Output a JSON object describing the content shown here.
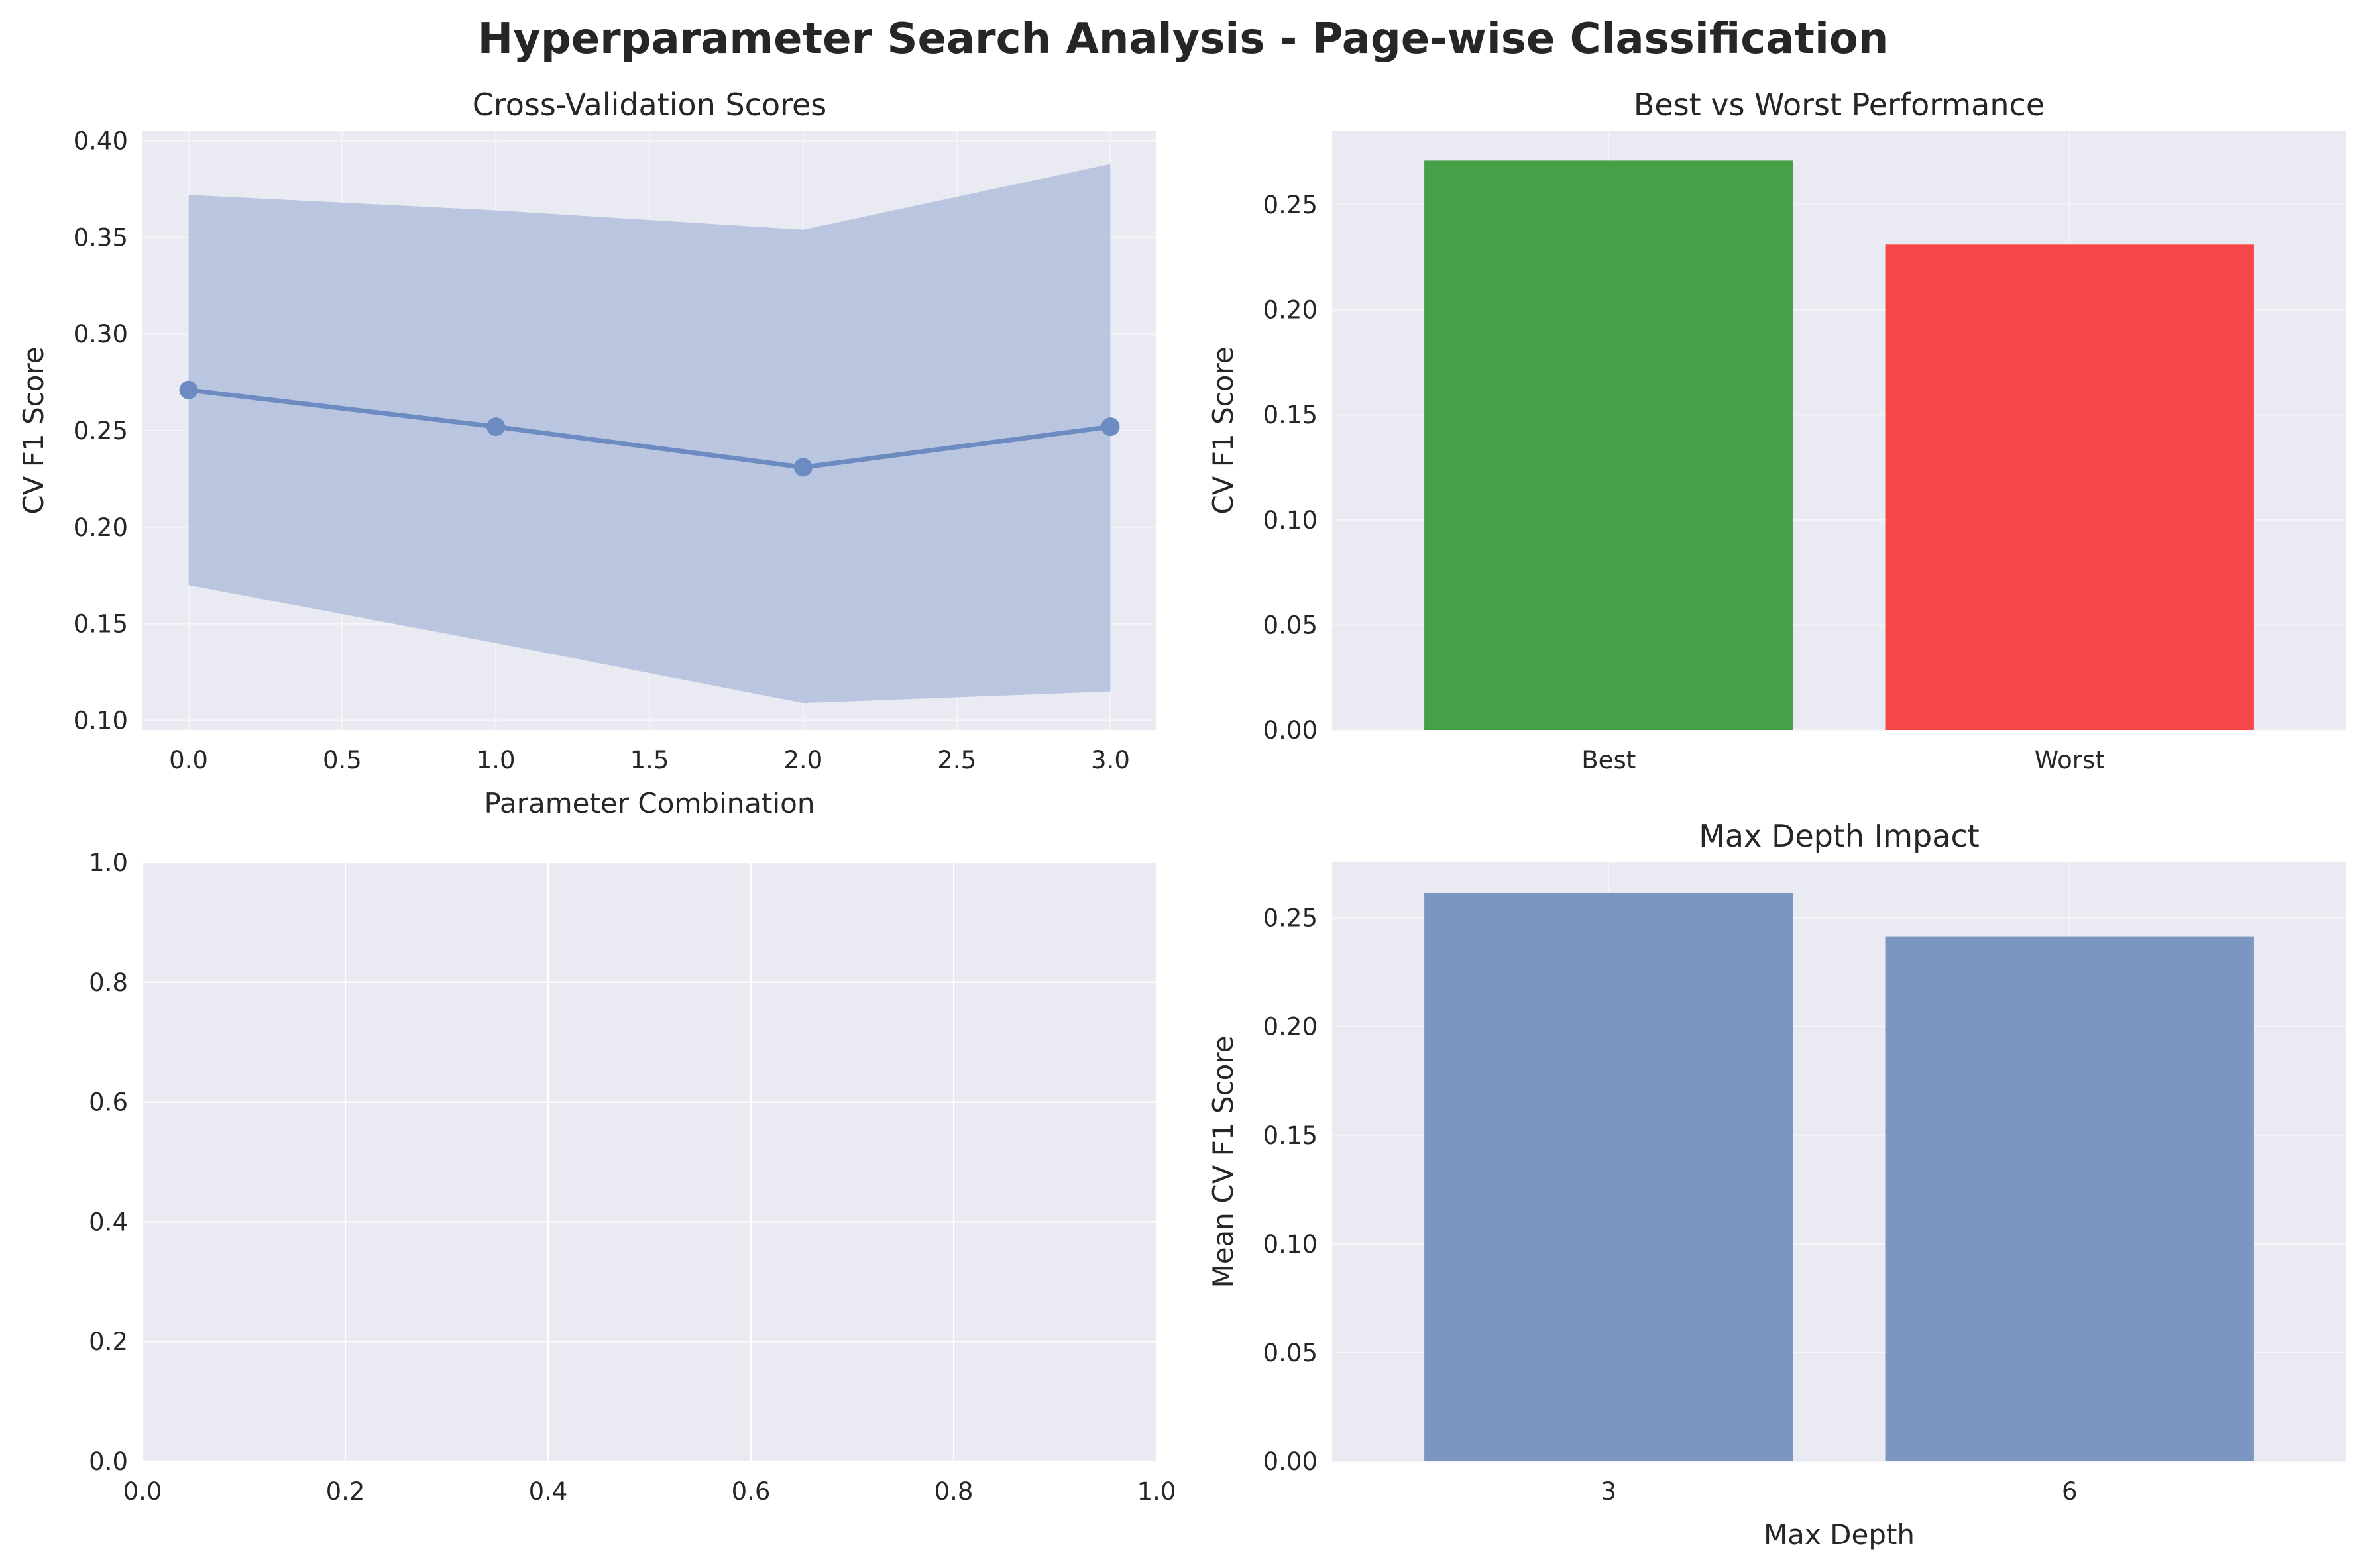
{
  "figure": {
    "suptitle": "Hyperparameter Search Analysis - Page-wise Classification"
  },
  "colors": {
    "axes_bg": "#eaeaf2",
    "series_blue": "#6b8bc1",
    "band_blue": "#b7c4de",
    "bar_blue": "#7b96c1",
    "best_green": "#45a047",
    "worst_red": "#f7464a",
    "text": "#262626"
  },
  "chart_data": [
    {
      "id": "cv",
      "type": "line",
      "title": "Cross-Validation Scores",
      "xlabel": "Parameter Combination",
      "ylabel": "CV F1 Score",
      "x": [
        0,
        1,
        2,
        3
      ],
      "y": [
        0.271,
        0.252,
        0.231,
        0.252
      ],
      "band_upper": [
        0.372,
        0.364,
        0.354,
        0.388
      ],
      "band_lower": [
        0.17,
        0.14,
        0.109,
        0.115
      ],
      "xlim": [
        -0.15,
        3.15
      ],
      "ylim": [
        0.095,
        0.405
      ],
      "xticks": [
        0.0,
        0.5,
        1.0,
        1.5,
        2.0,
        2.5,
        3.0
      ],
      "xtick_labels": [
        "0.0",
        "0.5",
        "1.0",
        "1.5",
        "2.0",
        "2.5",
        "3.0"
      ],
      "yticks": [
        0.1,
        0.15,
        0.2,
        0.25,
        0.3,
        0.35,
        0.4
      ],
      "ytick_labels": [
        "0.10",
        "0.15",
        "0.20",
        "0.25",
        "0.30",
        "0.35",
        "0.40"
      ],
      "grid": true
    },
    {
      "id": "bw",
      "type": "bar",
      "title": "Best vs Worst Performance",
      "xlabel": "",
      "ylabel": "CV F1 Score",
      "categories": [
        "Best",
        "Worst"
      ],
      "values": [
        0.271,
        0.231
      ],
      "bar_colors": [
        "#45a047",
        "#f7464a"
      ],
      "ylim": [
        0,
        0.285
      ],
      "yticks": [
        0.0,
        0.05,
        0.1,
        0.15,
        0.2,
        0.25
      ],
      "ytick_labels": [
        "0.00",
        "0.05",
        "0.10",
        "0.15",
        "0.20",
        "0.25"
      ],
      "grid": true
    },
    {
      "id": "empty",
      "type": "scatter",
      "title": "",
      "xlabel": "",
      "ylabel": "",
      "xlim": [
        0,
        1
      ],
      "ylim": [
        0,
        1
      ],
      "xticks": [
        0.0,
        0.2,
        0.4,
        0.6,
        0.8,
        1.0
      ],
      "xtick_labels": [
        "0.0",
        "0.2",
        "0.4",
        "0.6",
        "0.8",
        "1.0"
      ],
      "yticks": [
        0.0,
        0.2,
        0.4,
        0.6,
        0.8,
        1.0
      ],
      "ytick_labels": [
        "0.0",
        "0.2",
        "0.4",
        "0.6",
        "0.8",
        "1.0"
      ],
      "grid": true
    },
    {
      "id": "md",
      "type": "bar",
      "title": "Max Depth Impact",
      "xlabel": "Max Depth",
      "ylabel": "Mean CV F1 Score",
      "categories": [
        "3",
        "6"
      ],
      "values": [
        0.2615,
        0.2415
      ],
      "bar_colors": [
        "#7b96c1",
        "#7b96c1"
      ],
      "ylim": [
        0,
        0.2755
      ],
      "yticks": [
        0.0,
        0.05,
        0.1,
        0.15,
        0.2,
        0.25
      ],
      "ytick_labels": [
        "0.00",
        "0.05",
        "0.10",
        "0.15",
        "0.20",
        "0.25"
      ],
      "grid": true
    }
  ]
}
